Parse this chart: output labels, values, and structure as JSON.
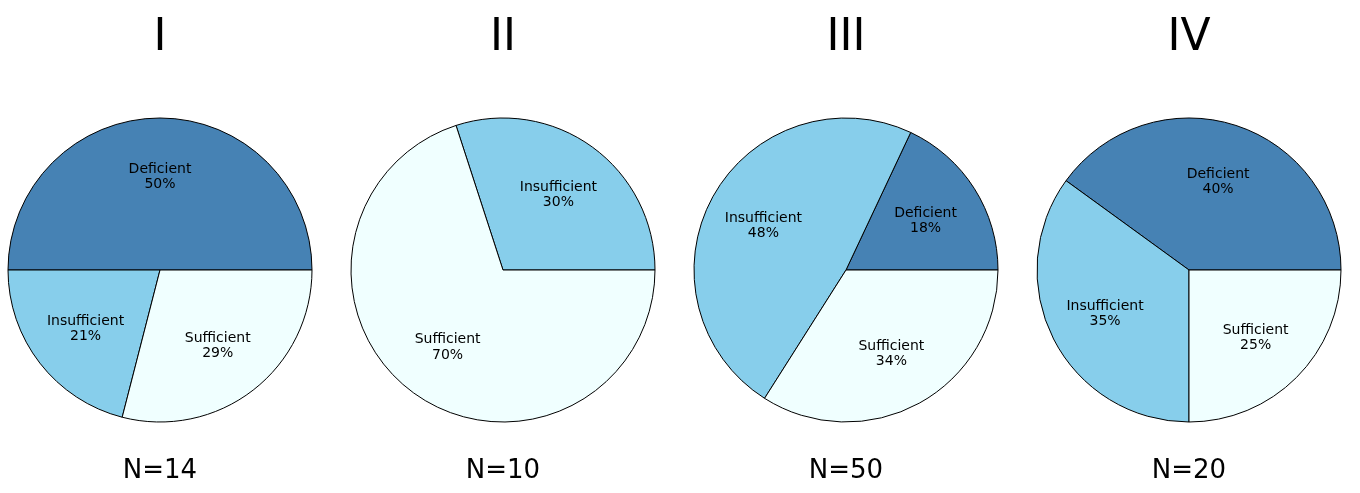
{
  "chart_data": [
    {
      "type": "pie",
      "title": "I",
      "categories": [
        "Deficient",
        "Insufficient",
        "Sufficient"
      ],
      "values": [
        50,
        21,
        29
      ],
      "value_labels": [
        "50%",
        "21%",
        "29%"
      ],
      "colors": [
        "#4682b4",
        "#87ceeb",
        "#f0ffff"
      ],
      "annotations": [
        "N=14"
      ]
    },
    {
      "type": "pie",
      "title": "II",
      "categories": [
        "Insufficient",
        "Sufficient"
      ],
      "values": [
        30,
        70
      ],
      "value_labels": [
        "30%",
        "70%"
      ],
      "colors": [
        "#87ceeb",
        "#f0ffff"
      ],
      "annotations": [
        "N=10"
      ]
    },
    {
      "type": "pie",
      "title": "III",
      "categories": [
        "Deficient",
        "Insufficient",
        "Sufficient"
      ],
      "values": [
        18,
        48,
        34
      ],
      "value_labels": [
        "18%",
        "48%",
        "34%"
      ],
      "colors": [
        "#4682b4",
        "#87ceeb",
        "#f0ffff"
      ],
      "annotations": [
        "N=50"
      ]
    },
    {
      "type": "pie",
      "title": "IV",
      "categories": [
        "Deficient",
        "Insufficient",
        "Sufficient"
      ],
      "values": [
        40,
        35,
        25
      ],
      "value_labels": [
        "40%",
        "35%",
        "25%"
      ],
      "colors": [
        "#4682b4",
        "#87ceeb",
        "#f0ffff"
      ],
      "annotations": [
        "N=20"
      ]
    }
  ]
}
